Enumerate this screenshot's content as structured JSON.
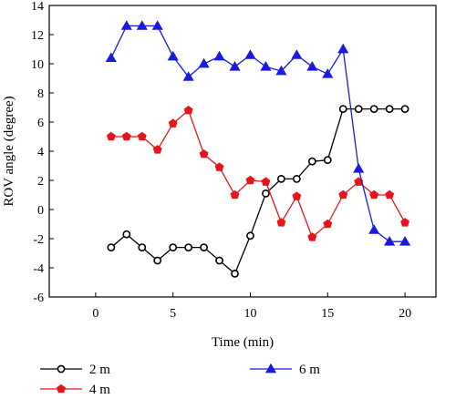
{
  "chart_data": {
    "type": "line",
    "xlabel": "Time (min)",
    "ylabel": "ROV angle (degree)",
    "xlim": [
      -3,
      22
    ],
    "ylim": [
      -6,
      14
    ],
    "xticks": [
      0,
      5,
      10,
      15,
      20
    ],
    "yticks": [
      -6,
      -4,
      -2,
      0,
      2,
      4,
      6,
      8,
      10,
      12,
      14
    ],
    "grid": false,
    "legend_position": "bottom",
    "x": [
      1,
      2,
      3,
      4,
      5,
      6,
      7,
      8,
      9,
      10,
      11,
      12,
      13,
      14,
      15,
      16,
      17,
      18,
      19,
      20
    ],
    "series": [
      {
        "name": "2 m",
        "color": "#000000",
        "marker": "circle",
        "x": [
          1,
          2,
          3,
          4,
          5,
          6,
          7,
          8,
          9,
          10,
          11,
          12,
          13,
          14,
          15,
          16,
          17,
          18,
          19,
          20
        ],
        "values": [
          -2.6,
          -1.7,
          -2.6,
          -3.5,
          -2.6,
          -2.6,
          -2.6,
          -3.5,
          -4.4,
          -1.8,
          1.1,
          2.1,
          2.1,
          3.3,
          3.4,
          6.9,
          6.9,
          6.9,
          6.9,
          6.9
        ]
      },
      {
        "name": "4 m",
        "color": "#e8141b",
        "marker": "pentagon",
        "x": [
          1,
          2,
          3,
          4,
          5,
          6,
          7,
          8,
          9,
          10,
          11,
          12,
          13,
          14,
          15,
          16,
          17,
          18,
          19,
          20
        ],
        "values": [
          5.0,
          5.0,
          5.0,
          4.1,
          5.9,
          6.8,
          3.8,
          2.9,
          1.0,
          2.0,
          1.9,
          -0.9,
          0.9,
          -1.9,
          -1.0,
          1.0,
          1.9,
          1.0,
          1.0,
          -0.9
        ]
      },
      {
        "name": "6 m",
        "color": "#1a1adf",
        "marker": "triangle",
        "x": [
          1,
          2,
          3,
          4,
          5,
          6,
          7,
          8,
          9,
          10,
          11,
          12,
          13,
          14,
          15,
          16,
          17,
          18,
          19,
          20
        ],
        "values": [
          10.4,
          12.6,
          12.6,
          12.6,
          10.5,
          9.1,
          10.0,
          10.5,
          9.8,
          10.6,
          9.8,
          9.5,
          10.6,
          9.8,
          9.3,
          11.0,
          2.8,
          -1.4,
          -2.2,
          -2.2
        ]
      }
    ]
  }
}
